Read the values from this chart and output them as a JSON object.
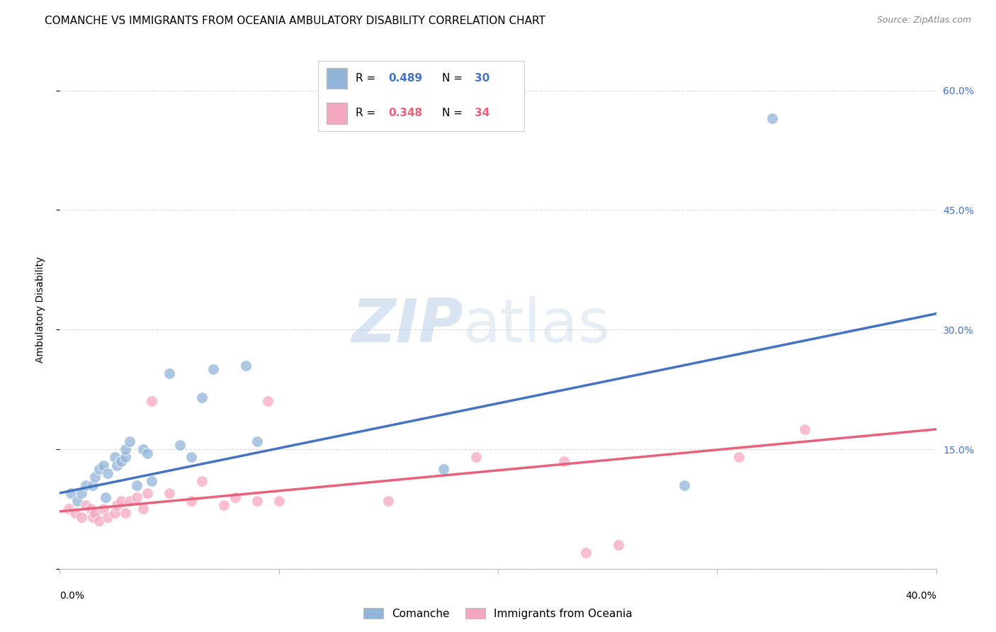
{
  "title": "COMANCHE VS IMMIGRANTS FROM OCEANIA AMBULATORY DISABILITY CORRELATION CHART",
  "source": "Source: ZipAtlas.com",
  "ylabel": "Ambulatory Disability",
  "yticks": [
    0.0,
    0.15,
    0.3,
    0.45,
    0.6
  ],
  "ytick_labels": [
    "",
    "15.0%",
    "30.0%",
    "45.0%",
    "60.0%"
  ],
  "xlim": [
    0.0,
    0.4
  ],
  "ylim": [
    0.0,
    0.65
  ],
  "series1_name": "Comanche",
  "series2_name": "Immigrants from Oceania",
  "series1_color": "#92B4D8",
  "series2_color": "#F4A8C0",
  "trendline1_color": "#4472C4",
  "trendline2_color": "#E8607A",
  "series1_R": "0.489",
  "series1_N": "30",
  "series2_R": "0.348",
  "series2_N": "34",
  "series1_x": [
    0.005,
    0.008,
    0.01,
    0.012,
    0.015,
    0.016,
    0.018,
    0.02,
    0.021,
    0.022,
    0.025,
    0.026,
    0.028,
    0.03,
    0.03,
    0.032,
    0.035,
    0.038,
    0.04,
    0.042,
    0.05,
    0.055,
    0.06,
    0.065,
    0.07,
    0.085,
    0.09,
    0.175,
    0.285,
    0.325
  ],
  "series1_y": [
    0.095,
    0.085,
    0.095,
    0.105,
    0.105,
    0.115,
    0.125,
    0.13,
    0.09,
    0.12,
    0.14,
    0.13,
    0.135,
    0.14,
    0.15,
    0.16,
    0.105,
    0.15,
    0.145,
    0.11,
    0.245,
    0.155,
    0.14,
    0.215,
    0.25,
    0.255,
    0.16,
    0.125,
    0.105,
    0.565
  ],
  "series2_x": [
    0.004,
    0.007,
    0.01,
    0.012,
    0.014,
    0.015,
    0.016,
    0.018,
    0.02,
    0.022,
    0.025,
    0.026,
    0.028,
    0.03,
    0.032,
    0.035,
    0.038,
    0.04,
    0.042,
    0.05,
    0.06,
    0.065,
    0.075,
    0.08,
    0.09,
    0.095,
    0.1,
    0.15,
    0.19,
    0.23,
    0.24,
    0.255,
    0.31,
    0.34
  ],
  "series2_y": [
    0.075,
    0.07,
    0.065,
    0.08,
    0.075,
    0.065,
    0.07,
    0.06,
    0.075,
    0.065,
    0.07,
    0.08,
    0.085,
    0.07,
    0.085,
    0.09,
    0.075,
    0.095,
    0.21,
    0.095,
    0.085,
    0.11,
    0.08,
    0.09,
    0.085,
    0.21,
    0.085,
    0.085,
    0.14,
    0.135,
    0.02,
    0.03,
    0.14,
    0.175
  ],
  "trendline1_x": [
    0.0,
    0.4
  ],
  "trendline1_y": [
    0.095,
    0.32
  ],
  "trendline2_x": [
    0.0,
    0.4
  ],
  "trendline2_y": [
    0.072,
    0.175
  ],
  "background_color": "#ffffff",
  "grid_color": "#d0d0d0",
  "title_fontsize": 11,
  "axis_label_fontsize": 10,
  "tick_fontsize": 10,
  "source_fontsize": 9
}
